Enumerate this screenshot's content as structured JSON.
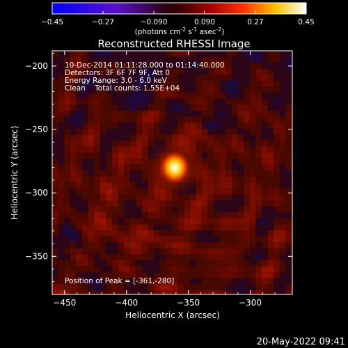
{
  "colorbar": {
    "ticks": [
      "-0.45",
      "-0.27",
      "-0.090",
      "0.090",
      "0.27",
      "0.45"
    ],
    "unit_label_parts": [
      "(photons cm",
      "-2",
      " s",
      "-1",
      " asec",
      "-2",
      ")"
    ]
  },
  "title": "Reconstructed RHESSI Image",
  "annotations": [
    "10-Dec-2014 01:11:28.000 to 01:14:40.000",
    "Detectors: 3F 6F 7F 9F, Att 0",
    "Energy Range: 3.0 - 6.0 keV",
    "Clean    Total counts: 1.55E+04"
  ],
  "peak_label": "Position of Peak = [-361,-280]",
  "footer_timestamp": "20-May-2022 09:41",
  "chart_data": {
    "type": "heatmap",
    "title": "Reconstructed RHESSI Image",
    "xlabel": "Heliocentric X (arcsec)",
    "ylabel": "Heliocentric Y (arcsec)",
    "xlim": [
      -460,
      -266
    ],
    "ylim": [
      -380,
      -188
    ],
    "xticks": [
      -450,
      -400,
      -350,
      -300
    ],
    "yticks": [
      -200,
      -250,
      -300,
      -350
    ],
    "color_range": [
      -0.45,
      0.45
    ],
    "colormap": "blue-purple-red-orange-yellow-white",
    "peak": {
      "x": -361,
      "y": -280
    },
    "grid": false
  }
}
